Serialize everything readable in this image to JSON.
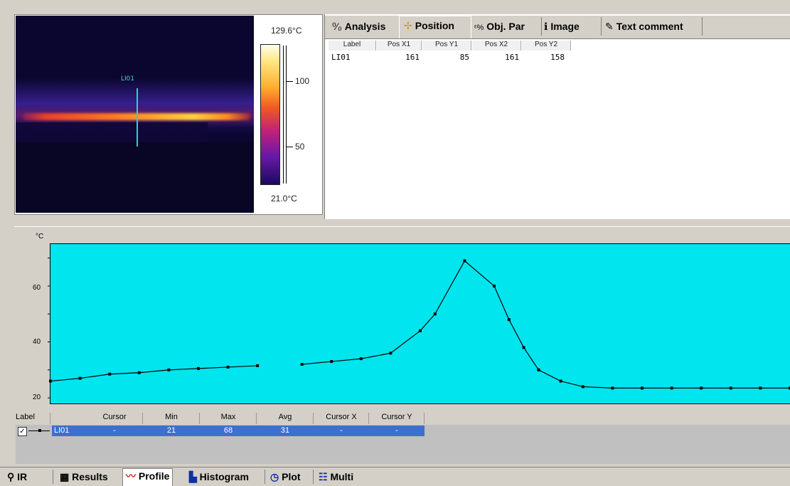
{
  "ir_image": {
    "scale_max": "129.6°C",
    "scale_min": "21.0°C",
    "scale_ticks": [
      "100",
      "50"
    ],
    "line_label": "LI01"
  },
  "tabs": [
    {
      "label": "Analysis",
      "icon": "analysis-icon",
      "active": false
    },
    {
      "label": "Position",
      "icon": "position-icon",
      "active": true
    },
    {
      "label": "Obj. Par",
      "icon": "obj-par-icon",
      "active": false
    },
    {
      "label": "Image",
      "icon": "info-icon",
      "active": false
    },
    {
      "label": "Text comment",
      "icon": "text-comment-icon",
      "active": false
    }
  ],
  "position_table": {
    "headers": [
      "Label",
      "Pos X1",
      "Pos Y1",
      "Pos X2",
      "Pos Y2"
    ],
    "rows": [
      [
        "LI01",
        "161",
        "85",
        "161",
        "158"
      ]
    ]
  },
  "profile": {
    "y_unit": "°C",
    "y_ticks": [
      "60",
      "40",
      "20"
    ]
  },
  "chart_data": {
    "type": "line",
    "ylabel": "°C",
    "ylim": [
      18,
      75
    ],
    "x": [
      0,
      4,
      8,
      12,
      16,
      20,
      24,
      28,
      31,
      34,
      38,
      42,
      46,
      50,
      52,
      56,
      60,
      62,
      64,
      66,
      69,
      72,
      76,
      80,
      84,
      88,
      92,
      96,
      100
    ],
    "series": [
      {
        "name": "LI01",
        "values": [
          26,
          27,
          28.5,
          29,
          30,
          30.5,
          31,
          31.5,
          null,
          32,
          33,
          34,
          36,
          44,
          50,
          69,
          60,
          48,
          38,
          30,
          26,
          24,
          23.5,
          23.5,
          23.5,
          23.5,
          23.5,
          23.5,
          23.5
        ]
      }
    ]
  },
  "data_table": {
    "headers": [
      "Label",
      "Cursor",
      "Min",
      "Max",
      "Avg",
      "Cursor X",
      "Cursor Y"
    ],
    "row": {
      "label": "LI01",
      "cursor": "-",
      "min": "21",
      "max": "68",
      "avg": "31",
      "cursor_x": "-",
      "cursor_y": "-"
    }
  },
  "bottom_tabs": [
    {
      "label": "IR",
      "active": false
    },
    {
      "label": "Results",
      "active": false
    },
    {
      "label": "Profile",
      "active": true
    },
    {
      "label": "Histogram",
      "active": false
    },
    {
      "label": "Plot",
      "active": false
    },
    {
      "label": "Multi",
      "active": false
    }
  ],
  "colors": {
    "plot_background": "#00e5ee",
    "selection": "#3d6fcf"
  }
}
